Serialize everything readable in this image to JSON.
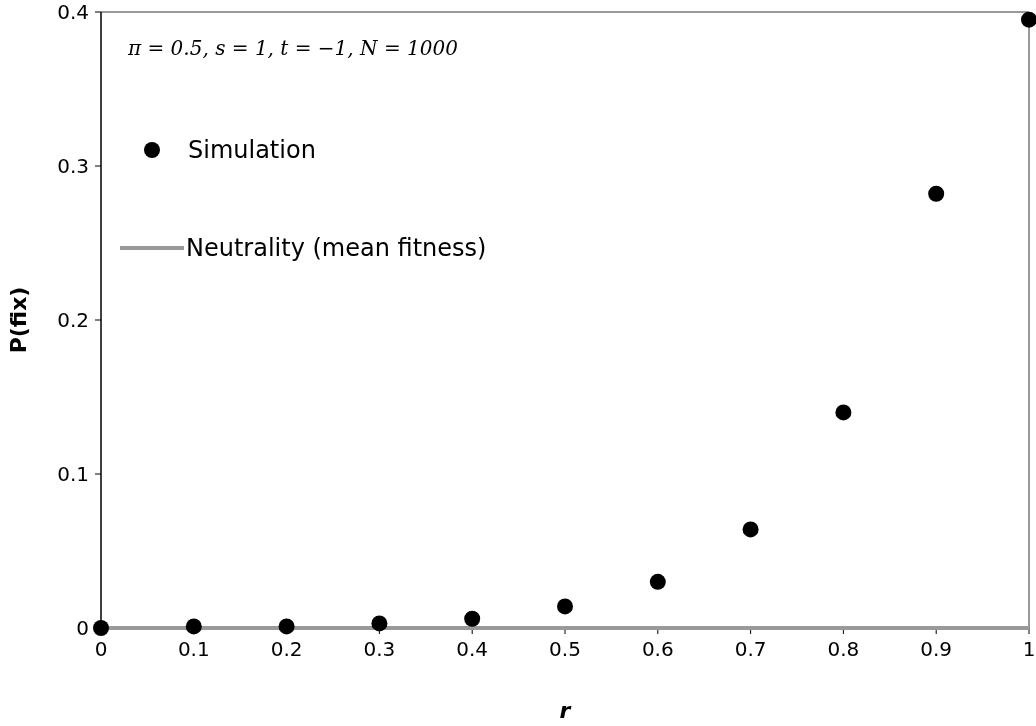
{
  "chart_data": {
    "type": "scatter",
    "xlabel": "r",
    "ylabel": "P(fix)",
    "annotations": [
      "π = 0.5, s = 1, t = −1, N = 1000"
    ],
    "xlim": [
      0,
      1
    ],
    "xticks": [
      0,
      0.1,
      0.2,
      0.3,
      0.4,
      0.5,
      0.6,
      0.7,
      0.8,
      0.9,
      1
    ],
    "ylim": [
      0,
      0.4
    ],
    "yticks": [
      0,
      0.1,
      0.2,
      0.3,
      0.4
    ],
    "grid": false,
    "legend": "top left",
    "marker": "circle",
    "series": [
      {
        "name": "Neutrality (mean fitness)",
        "type": "line",
        "color": "#999999",
        "line_style": "solid",
        "marker": "none",
        "x": [
          0,
          1
        ],
        "values": [
          0,
          0
        ]
      },
      {
        "name": "Simulation",
        "color": "#000000",
        "x": [
          0,
          0.1,
          0.2,
          0.3,
          0.4,
          0.5,
          0.6,
          0.7,
          0.8,
          0.9,
          1
        ],
        "values": [
          0,
          0.001,
          0.001,
          0.003,
          0.006,
          0.014,
          0.03,
          0.064,
          0.14,
          0.282,
          0.395
        ]
      }
    ]
  }
}
